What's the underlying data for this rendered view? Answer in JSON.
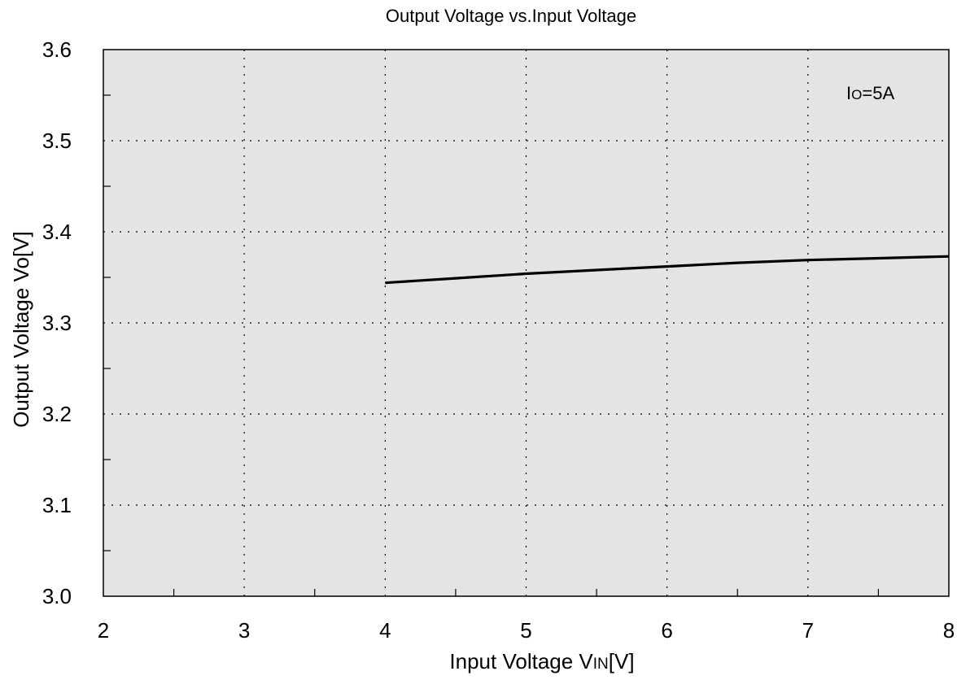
{
  "chart_data": {
    "type": "line",
    "title": "Output Voltage vs.Input Voltage",
    "xlabel": {
      "main": "Input Voltage V",
      "sub": "IN",
      "unit": "[V]"
    },
    "ylabel": "Output Voltage Vo[V]",
    "xlim": [
      2,
      8
    ],
    "ylim": [
      3.0,
      3.6
    ],
    "xticks": [
      "2",
      "3",
      "4",
      "5",
      "6",
      "7",
      "8"
    ],
    "yticks": [
      "3.0",
      "3.1",
      "3.2",
      "3.3",
      "3.4",
      "3.5",
      "3.6"
    ],
    "grid": true,
    "annotation": {
      "main": "I",
      "sub": "O",
      "rest": "=5A"
    },
    "series": [
      {
        "x": [
          4.0,
          4.5,
          5.0,
          5.5,
          6.0,
          6.5,
          7.0,
          7.5,
          8.0
        ],
        "y": [
          3.344,
          3.349,
          3.354,
          3.358,
          3.362,
          3.366,
          3.369,
          3.371,
          3.373
        ]
      }
    ],
    "colors": {
      "plot_bg": "#e4e4e4",
      "line": "#000000",
      "grid": "#000000"
    }
  }
}
